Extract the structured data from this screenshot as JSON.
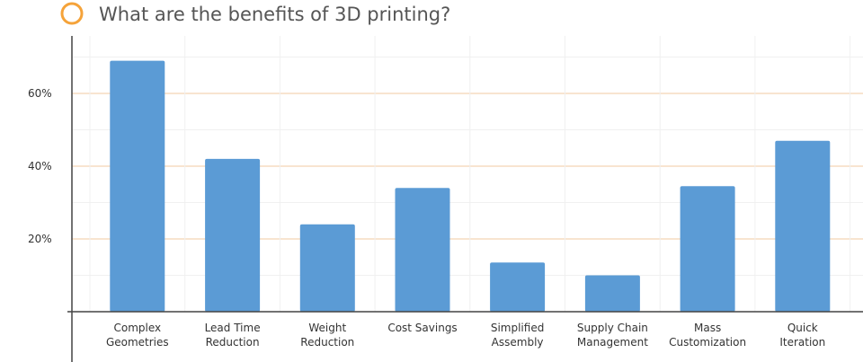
{
  "chart_data": {
    "type": "bar",
    "title": "What are the benefits of 3D printing?",
    "xlabel": "",
    "ylabel": "",
    "categories": [
      [
        "Complex",
        "Geometries"
      ],
      [
        "Lead Time",
        "Reduction"
      ],
      [
        "Weight",
        "Reduction"
      ],
      [
        "Cost Savings"
      ],
      [
        "Simplified",
        "Assembly"
      ],
      [
        "Supply Chain",
        "Management"
      ],
      [
        "Mass",
        "Customization"
      ],
      [
        "Quick",
        "Iteration"
      ]
    ],
    "values": [
      69,
      42,
      24,
      34,
      13.5,
      10,
      34.5,
      47
    ],
    "ylim": [
      0,
      75
    ],
    "yticks": [
      {
        "value": 20,
        "label": "20%"
      },
      {
        "value": 40,
        "label": "40%"
      },
      {
        "value": 60,
        "label": "60%"
      }
    ],
    "grid": true,
    "colors": {
      "bar": "#5b9bd5",
      "grid_major": "#f6dcc0",
      "grid_minor": "#f0f0f0",
      "axis": "#444444",
      "title_marker": "#f5a33a"
    }
  }
}
